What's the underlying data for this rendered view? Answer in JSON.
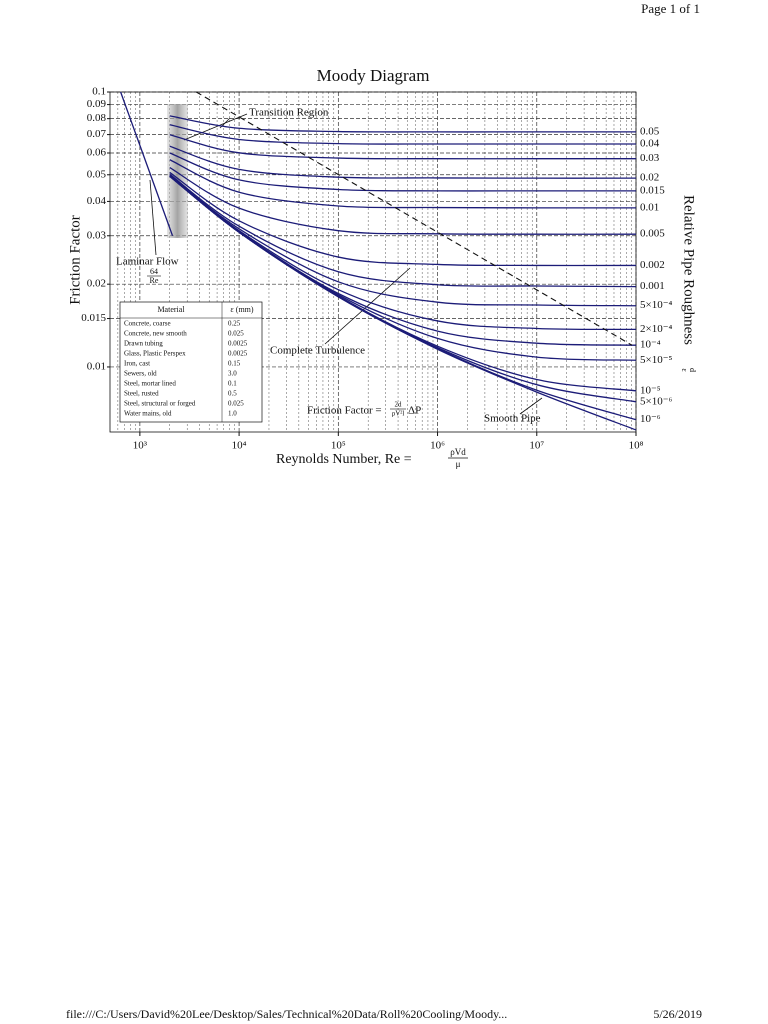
{
  "header": {
    "page": "Page 1 of 1"
  },
  "footer": {
    "url": "file:///C:/Users/David%20Lee/Desktop/Sales/Technical%20Data/Roll%20Cooling/Moody...",
    "date": "5/26/2019"
  },
  "chart_data": {
    "type": "line",
    "title": "Moody Diagram",
    "x_label": "Reynolds Number, Re =",
    "x_label_num": "ρVd",
    "x_label_den": "μ",
    "y_label": "Friction Factor",
    "y2_label": "Relative Pipe Roughness",
    "y2_label_num": "ε",
    "y2_label_den": "d",
    "xlog": true,
    "ylog": true,
    "grid": true,
    "color": "#1c1c78",
    "xlim": [
      500,
      100000000
    ],
    "ylim": [
      0.0058,
      0.1
    ],
    "xticks": [
      {
        "value": 1000,
        "label": "10³"
      },
      {
        "value": 10000,
        "label": "10⁴"
      },
      {
        "value": 100000,
        "label": "10⁵"
      },
      {
        "value": 1000000,
        "label": "10⁶"
      },
      {
        "value": 10000000,
        "label": "10⁷"
      },
      {
        "value": 100000000,
        "label": "10⁸"
      }
    ],
    "yticks": [
      0.01,
      0.015,
      0.02,
      0.03,
      0.04,
      0.05,
      0.06,
      0.07,
      0.08,
      0.09,
      0.1
    ],
    "series": [
      {
        "name": "0.05",
        "x": [
          2000,
          10000,
          100000,
          1000000,
          10000000,
          100000000
        ],
        "values": [
          0.0819,
          0.0738,
          0.0718,
          0.0716,
          0.0716,
          0.0716
        ]
      },
      {
        "name": "0.04",
        "x": [
          2000,
          10000,
          100000,
          1000000,
          10000000,
          100000000
        ],
        "values": [
          0.076,
          0.0672,
          0.0649,
          0.0647,
          0.0647,
          0.0647
        ]
      },
      {
        "name": "0.03",
        "x": [
          2000,
          10000,
          100000,
          1000000,
          10000000,
          100000000
        ],
        "values": [
          0.0699,
          0.0601,
          0.0575,
          0.0572,
          0.0572,
          0.0572
        ]
      },
      {
        "name": "0.02",
        "x": [
          2000,
          10000,
          100000,
          1000000,
          10000000,
          100000000
        ],
        "values": [
          0.0635,
          0.0523,
          0.049,
          0.0487,
          0.0486,
          0.0486
        ]
      },
      {
        "name": "0.015",
        "x": [
          2000,
          10000,
          100000,
          1000000,
          10000000,
          100000000
        ],
        "values": [
          0.06,
          0.0479,
          0.0442,
          0.0437,
          0.0437,
          0.0437
        ]
      },
      {
        "name": "0.01",
        "x": [
          2000,
          10000,
          100000,
          1000000,
          10000000,
          100000000
        ],
        "values": [
          0.0567,
          0.0432,
          0.0385,
          0.038,
          0.0379,
          0.0379
        ]
      },
      {
        "name": "0.005",
        "x": [
          2000,
          10000,
          100000,
          1000000,
          10000000,
          100000000
        ],
        "values": [
          0.0531,
          0.0378,
          0.0313,
          0.0305,
          0.0304,
          0.0304
        ]
      },
      {
        "name": "0.002",
        "x": [
          2000,
          10000,
          100000,
          1000000,
          10000000,
          100000000
        ],
        "values": [
          0.051,
          0.034,
          0.0251,
          0.0236,
          0.0234,
          0.0234
        ]
      },
      {
        "name": "0.001",
        "x": [
          2000,
          10000,
          100000,
          1000000,
          10000000,
          100000000
        ],
        "values": [
          0.0502,
          0.0325,
          0.0222,
          0.0199,
          0.0197,
          0.0196
        ]
      },
      {
        "name": "5×10⁻⁴",
        "x": [
          2000,
          10000,
          100000,
          1000000,
          10000000,
          100000000
        ],
        "values": [
          0.0498,
          0.0318,
          0.0204,
          0.0172,
          0.0168,
          0.0167
        ]
      },
      {
        "name": "2×10⁻⁴",
        "x": [
          2000,
          10000,
          100000,
          1000000,
          10000000,
          100000000
        ],
        "values": [
          0.0496,
          0.0313,
          0.0191,
          0.0147,
          0.0138,
          0.0137
        ]
      },
      {
        "name": "10⁻⁴",
        "x": [
          2000,
          10000,
          100000,
          1000000,
          10000000,
          100000000
        ],
        "values": [
          0.0495,
          0.0311,
          0.0185,
          0.0135,
          0.0122,
          0.012
        ]
      },
      {
        "name": "5×10⁻⁵",
        "x": [
          2000,
          10000,
          100000,
          1000000,
          10000000,
          100000000
        ],
        "values": [
          0.0495,
          0.031,
          0.0183,
          0.0127,
          0.01086,
          0.01058
        ]
      },
      {
        "name": "10⁻⁵",
        "x": [
          2000,
          10000,
          100000,
          1000000,
          10000000,
          100000000
        ],
        "values": [
          0.0494,
          0.0309,
          0.0181,
          0.0119,
          0.009,
          0.00819
        ]
      },
      {
        "name": "5×10⁻⁶",
        "x": [
          2000,
          10000,
          100000,
          1000000,
          10000000,
          100000000
        ],
        "values": [
          0.0494,
          0.0309,
          0.0181,
          0.01176,
          0.00862,
          0.00747
        ]
      },
      {
        "name": "10⁻⁶",
        "x": [
          2000,
          10000,
          100000,
          1000000,
          10000000,
          100000000
        ],
        "values": [
          0.0494,
          0.0309,
          0.018,
          0.01166,
          0.00823,
          0.00643
        ]
      },
      {
        "x": [
          2000,
          10000,
          100000,
          1000000,
          10000000,
          100000000
        ],
        "values": [
          0.0494,
          0.0309,
          0.018,
          0.0116,
          0.0081,
          0.0059
        ]
      }
    ],
    "laminar": {
      "x": [
        640,
        2133
      ],
      "values": [
        0.1,
        0.03
      ]
    },
    "boundary": {
      "x": [
        3700,
        91000000
      ],
      "values": [
        0.1,
        0.012
      ]
    },
    "annotations": {
      "transition": "Transition Region",
      "laminar": "Laminar Flow",
      "laminar_num": "64",
      "laminar_den": "Re",
      "turbulence": "Complete Turbulence",
      "friction_lhs": "Friction Factor =",
      "friction_num": "2d",
      "friction_den": "ρV²l",
      "friction_rhs": "ΔP",
      "smooth": "Smooth Pipe"
    },
    "table": {
      "header": [
        "Material",
        "ε (mm)"
      ],
      "rows": [
        [
          "Concrete, coarse",
          "0.25"
        ],
        [
          "Concrete, new smooth",
          "0.025"
        ],
        [
          "Drawn tubing",
          "0.0025"
        ],
        [
          "Glass, Plastic Perspex",
          "0.0025"
        ],
        [
          "Iron, cast",
          "0.15"
        ],
        [
          "Sewers, old",
          "3.0"
        ],
        [
          "Steel, mortar lined",
          "0.1"
        ],
        [
          "Steel, rusted",
          "0.5"
        ],
        [
          "Steel, structural or forged",
          "0.025"
        ],
        [
          "Water mains, old",
          "1.0"
        ]
      ]
    }
  }
}
